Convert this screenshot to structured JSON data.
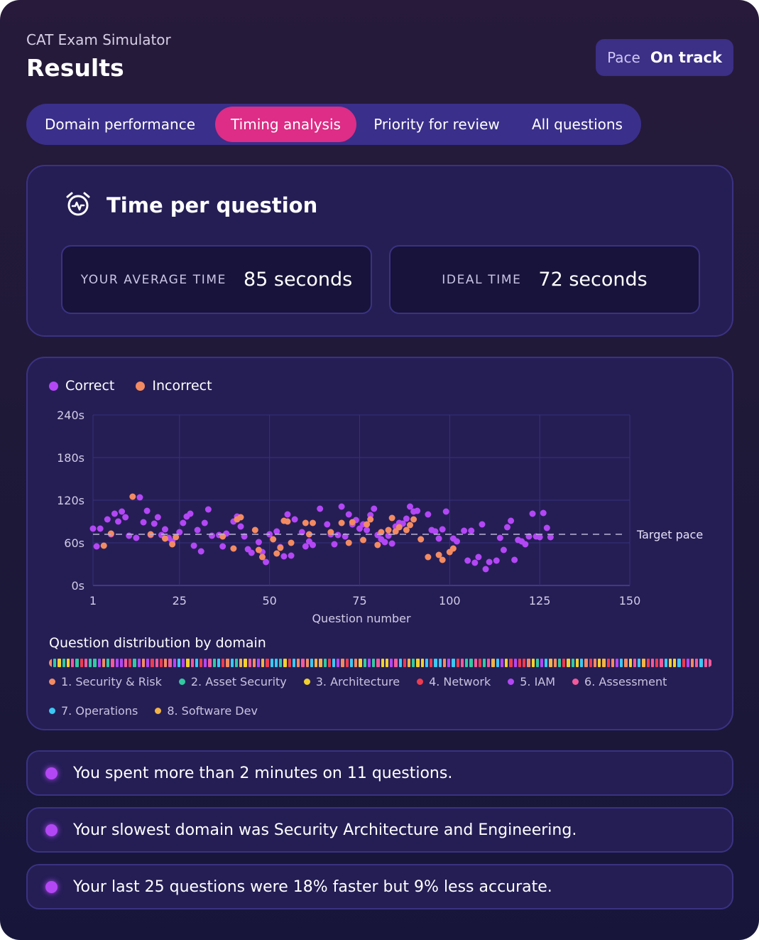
{
  "header": {
    "subtitle": "CAT Exam Simulator",
    "title": "Results"
  },
  "pace": {
    "label": "Pace",
    "value": "On track"
  },
  "tabs": [
    {
      "label": "Domain performance",
      "active": false
    },
    {
      "label": "Timing analysis",
      "active": true
    },
    {
      "label": "Priority for review",
      "active": false
    },
    {
      "label": "All questions",
      "active": false
    }
  ],
  "time_card": {
    "title": "Time per question",
    "icon": "alarm-clock-icon",
    "average": {
      "label": "YOUR AVERAGE TIME",
      "value": "85 seconds"
    },
    "ideal": {
      "label": "IDEAL TIME",
      "value": "72 seconds"
    }
  },
  "colors": {
    "correct": "#b347f5",
    "incorrect": "#f38b62",
    "accent": "#dd2d86",
    "panel": "#251e55"
  },
  "chart_data": {
    "type": "scatter",
    "series": [
      {
        "name": "Correct",
        "color": "#b347f5",
        "points": [
          [
            1,
            80
          ],
          [
            2,
            55
          ],
          [
            3,
            80
          ],
          [
            5,
            93
          ],
          [
            6,
            72
          ],
          [
            7,
            101
          ],
          [
            8,
            90
          ],
          [
            9,
            104
          ],
          [
            10,
            96
          ],
          [
            11,
            70
          ],
          [
            13,
            67
          ],
          [
            14,
            124
          ],
          [
            15,
            89
          ],
          [
            16,
            105
          ],
          [
            17,
            71
          ],
          [
            18,
            87
          ],
          [
            19,
            96
          ],
          [
            20,
            71
          ],
          [
            21,
            79
          ],
          [
            22,
            67
          ],
          [
            23,
            62
          ],
          [
            25,
            75
          ],
          [
            26,
            88
          ],
          [
            27,
            97
          ],
          [
            28,
            101
          ],
          [
            29,
            56
          ],
          [
            30,
            78
          ],
          [
            31,
            48
          ],
          [
            32,
            88
          ],
          [
            33,
            107
          ],
          [
            34,
            70
          ],
          [
            36,
            71
          ],
          [
            37,
            55
          ],
          [
            38,
            73
          ],
          [
            40,
            90
          ],
          [
            41,
            97
          ],
          [
            42,
            83
          ],
          [
            43,
            69
          ],
          [
            44,
            51
          ],
          [
            45,
            46
          ],
          [
            47,
            61
          ],
          [
            48,
            47
          ],
          [
            49,
            33
          ],
          [
            50,
            72
          ],
          [
            52,
            76
          ],
          [
            53,
            54
          ],
          [
            54,
            41
          ],
          [
            55,
            100
          ],
          [
            56,
            42
          ],
          [
            57,
            93
          ],
          [
            59,
            75
          ],
          [
            60,
            55
          ],
          [
            61,
            62
          ],
          [
            62,
            57
          ],
          [
            64,
            108
          ],
          [
            66,
            86
          ],
          [
            67,
            72
          ],
          [
            68,
            58
          ],
          [
            69,
            71
          ],
          [
            70,
            111
          ],
          [
            71,
            69
          ],
          [
            72,
            100
          ],
          [
            73,
            86
          ],
          [
            74,
            92
          ],
          [
            75,
            80
          ],
          [
            76,
            86
          ],
          [
            77,
            78
          ],
          [
            78,
            99
          ],
          [
            79,
            108
          ],
          [
            80,
            71
          ],
          [
            81,
            65
          ],
          [
            82,
            61
          ],
          [
            83,
            70
          ],
          [
            84,
            59
          ],
          [
            85,
            83
          ],
          [
            86,
            88
          ],
          [
            87,
            87
          ],
          [
            88,
            94
          ],
          [
            89,
            111
          ],
          [
            90,
            104
          ],
          [
            91,
            105
          ],
          [
            94,
            100
          ],
          [
            95,
            78
          ],
          [
            96,
            76
          ],
          [
            97,
            66
          ],
          [
            98,
            79
          ],
          [
            99,
            104
          ],
          [
            101,
            66
          ],
          [
            102,
            62
          ],
          [
            104,
            77
          ],
          [
            105,
            35
          ],
          [
            106,
            77
          ],
          [
            107,
            32
          ],
          [
            108,
            40
          ],
          [
            109,
            86
          ],
          [
            110,
            23
          ],
          [
            111,
            33
          ],
          [
            113,
            35
          ],
          [
            114,
            67
          ],
          [
            115,
            50
          ],
          [
            116,
            82
          ],
          [
            117,
            91
          ],
          [
            118,
            36
          ],
          [
            119,
            64
          ],
          [
            120,
            62
          ],
          [
            121,
            58
          ],
          [
            122,
            69
          ],
          [
            123,
            101
          ],
          [
            124,
            69
          ],
          [
            125,
            68
          ],
          [
            126,
            102
          ],
          [
            127,
            81
          ],
          [
            128,
            68
          ]
        ]
      },
      {
        "name": "Incorrect",
        "color": "#f38b62",
        "points": [
          [
            4,
            56
          ],
          [
            6,
            73
          ],
          [
            12,
            125
          ],
          [
            17,
            72
          ],
          [
            21,
            66
          ],
          [
            23,
            58
          ],
          [
            24,
            68
          ],
          [
            37,
            69
          ],
          [
            40,
            52
          ],
          [
            41,
            93
          ],
          [
            42,
            96
          ],
          [
            46,
            78
          ],
          [
            47,
            50
          ],
          [
            48,
            40
          ],
          [
            51,
            65
          ],
          [
            52,
            45
          ],
          [
            53,
            53
          ],
          [
            54,
            91
          ],
          [
            55,
            90
          ],
          [
            56,
            60
          ],
          [
            60,
            88
          ],
          [
            61,
            72
          ],
          [
            62,
            88
          ],
          [
            67,
            75
          ],
          [
            70,
            88
          ],
          [
            72,
            60
          ],
          [
            73,
            89
          ],
          [
            76,
            64
          ],
          [
            77,
            86
          ],
          [
            78,
            93
          ],
          [
            80,
            57
          ],
          [
            81,
            75
          ],
          [
            83,
            78
          ],
          [
            84,
            95
          ],
          [
            85,
            76
          ],
          [
            86,
            82
          ],
          [
            88,
            78
          ],
          [
            89,
            85
          ],
          [
            90,
            93
          ],
          [
            92,
            65
          ],
          [
            94,
            40
          ],
          [
            97,
            43
          ],
          [
            98,
            36
          ],
          [
            100,
            47
          ],
          [
            101,
            52
          ]
        ]
      }
    ],
    "target_pace": {
      "value": 72,
      "label": "Target pace"
    },
    "xlabel": "Question number",
    "ylabel": "",
    "xlim": [
      1,
      150
    ],
    "ylim": [
      0,
      240
    ],
    "xticks": [
      1,
      25,
      50,
      75,
      100,
      125,
      150
    ],
    "yticks": [
      0,
      60,
      120,
      180,
      240
    ],
    "ytick_labels": [
      "0s",
      "60s",
      "120s",
      "180s",
      "240s"
    ],
    "grid": true,
    "legend": "top-left"
  },
  "distribution": {
    "title": "Question distribution by domain",
    "sequence": [
      1,
      2,
      3,
      2,
      3,
      6,
      2,
      4,
      6,
      2,
      2,
      5,
      1,
      2,
      6,
      5,
      5,
      6,
      4,
      2,
      5,
      1,
      5,
      4,
      6,
      4,
      1,
      6,
      5,
      7,
      5,
      3,
      6,
      7,
      4,
      5,
      6,
      2,
      7,
      4,
      1,
      7,
      2,
      8,
      3,
      6,
      1,
      5,
      8,
      4,
      7,
      7,
      2,
      3,
      4,
      7,
      1,
      6,
      1,
      7,
      8,
      8,
      2,
      4,
      7,
      5,
      1,
      4,
      7,
      1,
      3,
      2,
      5,
      2,
      6,
      3,
      3,
      5,
      6,
      7,
      4,
      8,
      2,
      3,
      3,
      7,
      4,
      7,
      7,
      1,
      5,
      7,
      4,
      6,
      2,
      2,
      6,
      4,
      2,
      6,
      8,
      7,
      5,
      3,
      4,
      5,
      4,
      4,
      1,
      3,
      2,
      5,
      7,
      8,
      1,
      2,
      4,
      3,
      2,
      3,
      7,
      1,
      4,
      1,
      3,
      8,
      4,
      1,
      5,
      7,
      1,
      3,
      6,
      7,
      8,
      4,
      6,
      4,
      6,
      7,
      3,
      3,
      7,
      4,
      5,
      1,
      6,
      7,
      6,
      6
    ],
    "domains": [
      {
        "label": "1. Security & Risk",
        "color": "#f38b62"
      },
      {
        "label": "2. Asset Security",
        "color": "#33c9a0"
      },
      {
        "label": "3. Architecture",
        "color": "#f2d12e"
      },
      {
        "label": "4. Network",
        "color": "#ef3b4f"
      },
      {
        "label": "5. IAM",
        "color": "#b347f5"
      },
      {
        "label": "6. Assessment",
        "color": "#f25a9c"
      },
      {
        "label": "7. Operations",
        "color": "#3cc8f2"
      },
      {
        "label": "8. Software Dev",
        "color": "#f2b347"
      }
    ]
  },
  "insights": [
    "You spent more than 2 minutes on 11 questions.",
    "Your slowest domain was Security Architecture and Engineering.",
    "Your last 25 questions were 18% faster but 9% less accurate."
  ]
}
